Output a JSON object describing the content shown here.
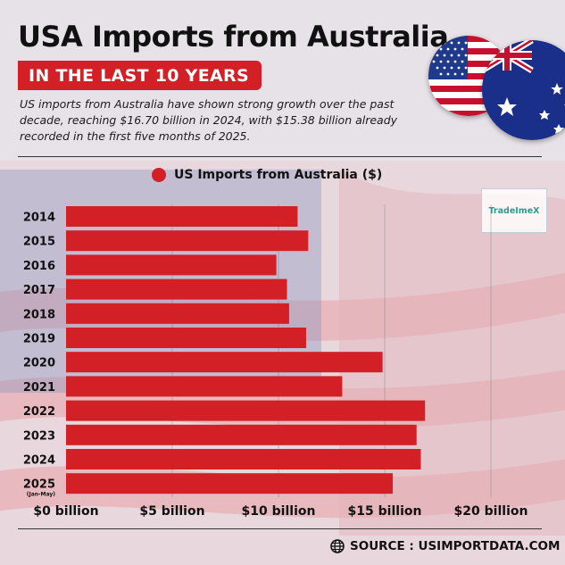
{
  "header": {
    "title": "USA Imports from Australia",
    "subtitle": "IN THE LAST 10 YEARS",
    "description": "US imports from Australia have shown strong growth over the past decade, reaching $16.70 billion in 2024, with $15.38 billion already recorded in the first five months of 2025."
  },
  "watermark": {
    "label": "TradeImeX"
  },
  "footer": {
    "source": "SOURCE : USIMPORTDATA.COM",
    "icon": "globe-icon"
  },
  "flags": {
    "left": "us-flag-icon",
    "right": "australia-flag-icon"
  },
  "colors": {
    "bar": "#d31f26",
    "accent": "#d31f26",
    "text": "#111111"
  },
  "chart_data": {
    "type": "bar",
    "orientation": "horizontal",
    "title": "",
    "legend": {
      "label": "US Imports from Australia ($)",
      "placement": "top"
    },
    "categories": [
      "2014",
      "2015",
      "2016",
      "2017",
      "2018",
      "2019",
      "2020",
      "2021",
      "2022",
      "2023",
      "2024",
      "2025"
    ],
    "category_notes": {
      "2025": "(Jan-May)"
    },
    "series": [
      {
        "name": "US Imports from Australia ($)",
        "values": [
          10.9,
          11.4,
          9.9,
          10.4,
          10.5,
          11.3,
          14.9,
          13.0,
          16.9,
          16.5,
          16.7,
          15.38
        ]
      }
    ],
    "xlabel": "",
    "ylabel": "",
    "xlim": [
      0,
      20
    ],
    "x_ticks": [
      0,
      5,
      10,
      15,
      20
    ],
    "x_tick_labels": [
      "$0 billion",
      "$5 billion",
      "$10 billion",
      "$15 billion",
      "$20 billion"
    ],
    "grid": true
  }
}
